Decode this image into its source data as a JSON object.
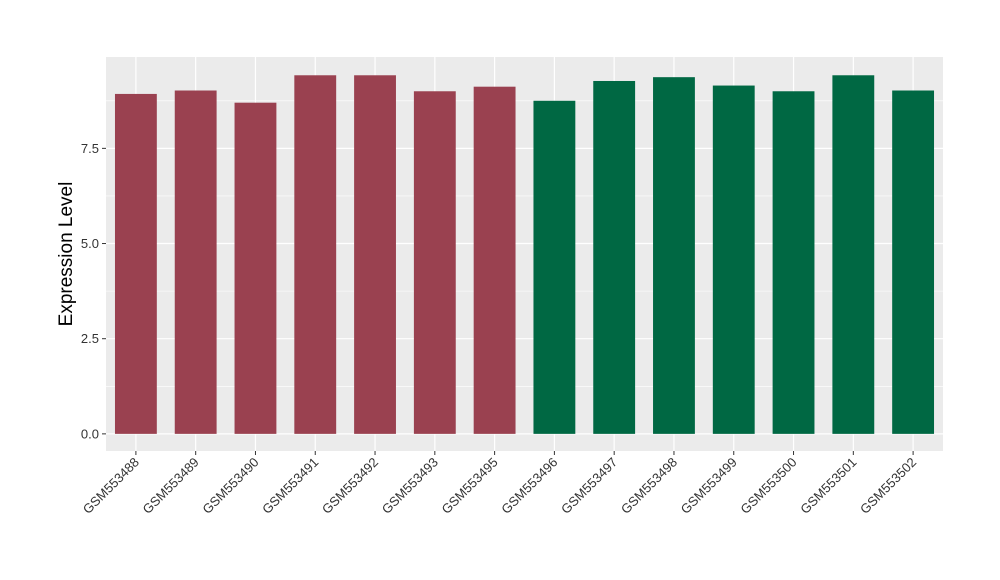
{
  "chart_data": {
    "type": "bar",
    "title": "",
    "xlabel": "",
    "ylabel": "Expression Level",
    "ylim": [
      -0.45,
      9.9
    ],
    "yticks": [
      0.0,
      2.5,
      5.0,
      7.5
    ],
    "ytick_labels": [
      "0.0",
      "2.5",
      "5.0",
      "7.5"
    ],
    "grid": true,
    "legend": "none",
    "categories": [
      "GSM553488",
      "GSM553489",
      "GSM553490",
      "GSM553491",
      "GSM553492",
      "GSM553493",
      "GSM553495",
      "GSM553496",
      "GSM553497",
      "GSM553498",
      "GSM553499",
      "GSM553500",
      "GSM553501",
      "GSM553502"
    ],
    "values": [
      8.93,
      9.02,
      8.7,
      9.42,
      9.42,
      9.0,
      9.12,
      8.75,
      9.27,
      9.37,
      9.15,
      9.0,
      9.42,
      9.02
    ],
    "bar_colors": [
      "#9a4150",
      "#9a4150",
      "#9a4150",
      "#9a4150",
      "#9a4150",
      "#9a4150",
      "#9a4150",
      "#006843",
      "#006843",
      "#006843",
      "#006843",
      "#006843",
      "#006843",
      "#006843"
    ],
    "panel_background": "#ebebeb",
    "grid_color": "#ffffff"
  }
}
